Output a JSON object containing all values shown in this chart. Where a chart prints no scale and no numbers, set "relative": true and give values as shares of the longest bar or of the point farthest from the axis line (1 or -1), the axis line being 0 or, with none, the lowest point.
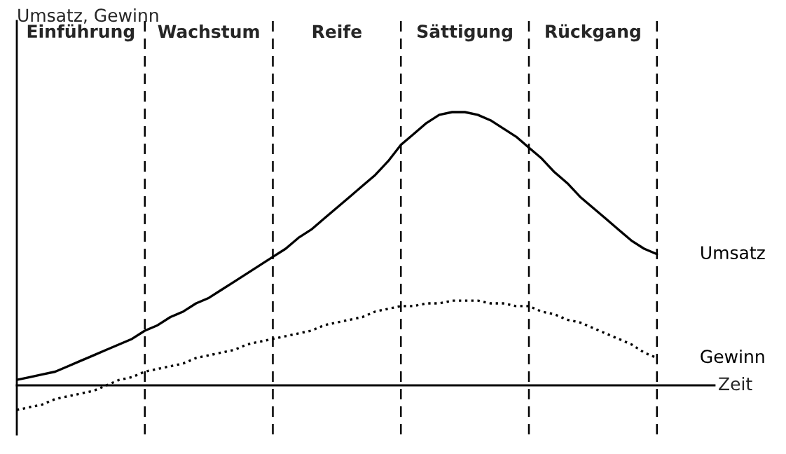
{
  "chart_data": {
    "type": "line",
    "relative": true,
    "xlabel": "Zeit",
    "ylabel": "Umsatz, Gewinn",
    "tick_labels": "x",
    "legend": false,
    "marker": "none",
    "categories": [
      null,
      null,
      null,
      null,
      null,
      "Einführung",
      null,
      null,
      null,
      null,
      null,
      null,
      null,
      null,
      null,
      "Wachstum",
      null,
      null,
      null,
      null,
      null,
      null,
      null,
      null,
      null,
      "Reife",
      null,
      null,
      null,
      null,
      null,
      null,
      null,
      null,
      null,
      "Sättigung",
      null,
      null,
      null,
      null,
      null,
      null,
      null,
      null,
      null,
      "Rückgang",
      null,
      null,
      null,
      null,
      null
    ],
    "series": [
      {
        "name": "Umsatz",
        "color": "#000000",
        "line_style": "solid",
        "values": [
          0.02,
          0.03,
          0.04,
          0.05,
          0.07,
          0.09,
          0.11,
          0.13,
          0.15,
          0.17,
          0.2,
          0.22,
          0.25,
          0.27,
          0.3,
          0.32,
          0.35,
          0.38,
          0.41,
          0.44,
          0.47,
          0.5,
          0.54,
          0.57,
          0.61,
          0.65,
          0.69,
          0.73,
          0.77,
          0.82,
          0.88,
          0.92,
          0.96,
          0.99,
          1.0,
          1.0,
          0.99,
          0.97,
          0.94,
          0.91,
          0.87,
          0.83,
          0.78,
          0.74,
          0.69,
          0.65,
          0.61,
          0.57,
          0.53,
          0.5,
          0.48
        ]
      },
      {
        "name": "Gewinn",
        "color": "#000000",
        "line_style": "dotted",
        "values": [
          -0.09,
          -0.08,
          -0.07,
          -0.05,
          -0.04,
          -0.03,
          -0.02,
          0.0,
          0.02,
          0.03,
          0.05,
          0.06,
          0.07,
          0.08,
          0.1,
          0.11,
          0.12,
          0.13,
          0.15,
          0.16,
          0.17,
          0.18,
          0.19,
          0.2,
          0.22,
          0.23,
          0.24,
          0.25,
          0.27,
          0.28,
          0.29,
          0.29,
          0.3,
          0.3,
          0.31,
          0.31,
          0.31,
          0.3,
          0.3,
          0.29,
          0.29,
          0.27,
          0.26,
          0.24,
          0.23,
          0.21,
          0.19,
          0.17,
          0.15,
          0.12,
          0.1
        ]
      }
    ],
    "grid": "x"
  }
}
